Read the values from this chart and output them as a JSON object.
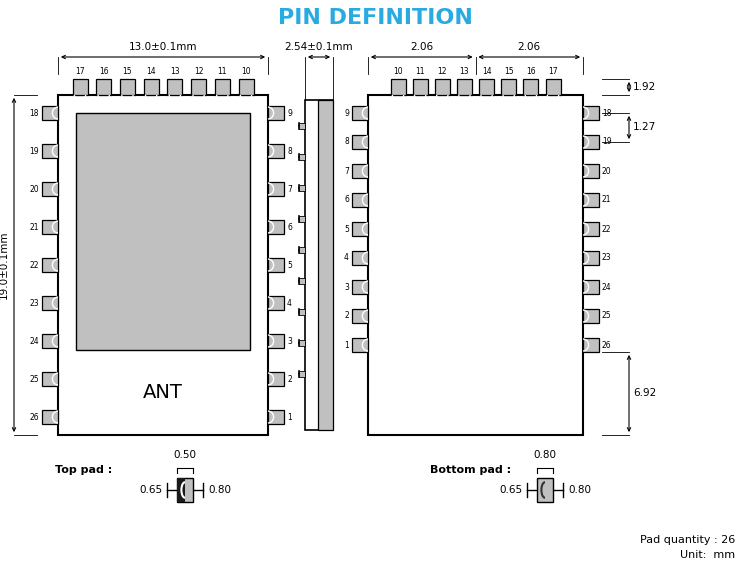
{
  "title": "PIN DEFINITION",
  "title_color": "#29ABE2",
  "title_fontsize": 16,
  "bg_color": "#ffffff",
  "line_color": "#000000",
  "gray_fill": "#c0c0c0",
  "dim_color": "#000000",
  "front_view": {
    "pad_top_labels": [
      "17",
      "16",
      "15",
      "14",
      "13",
      "12",
      "11",
      "10"
    ],
    "pad_right_labels": [
      "9",
      "8",
      "7",
      "6",
      "5",
      "4",
      "3",
      "2",
      "1"
    ],
    "pad_left_labels": [
      "18",
      "19",
      "20",
      "21",
      "22",
      "23",
      "24",
      "25",
      "26"
    ],
    "dim_width": "13.0±0.1mm",
    "dim_height": "19.0±0.1mm",
    "ant_text": "ANT"
  },
  "side_view": {
    "dim_text": "2.54±0.1mm"
  },
  "back_view": {
    "pad_top_labels": [
      "10",
      "11",
      "12",
      "13",
      "14",
      "15",
      "16",
      "17"
    ],
    "pad_right_labels": [
      "18",
      "19",
      "20",
      "21",
      "22",
      "23",
      "24",
      "25",
      "26"
    ],
    "pad_left_labels": [
      "9",
      "8",
      "7",
      "6",
      "5",
      "4",
      "3",
      "2",
      "1"
    ],
    "dim_top_left": "2.06",
    "dim_top_right": "2.06",
    "dim_right_top": "1.92",
    "dim_right_mid": "1.27",
    "dim_right_bot": "6.92"
  },
  "top_pad": {
    "label": "Top pad :",
    "dim_top": "0.50",
    "dim_left": "0.65",
    "dim_right": "0.80"
  },
  "bottom_pad": {
    "label": "Bottom pad :",
    "dim_top": "0.80",
    "dim_left": "0.65",
    "dim_right": "0.80"
  },
  "pad_qty_text": "Pad quantity : 26",
  "unit_text": "Unit:  mm"
}
